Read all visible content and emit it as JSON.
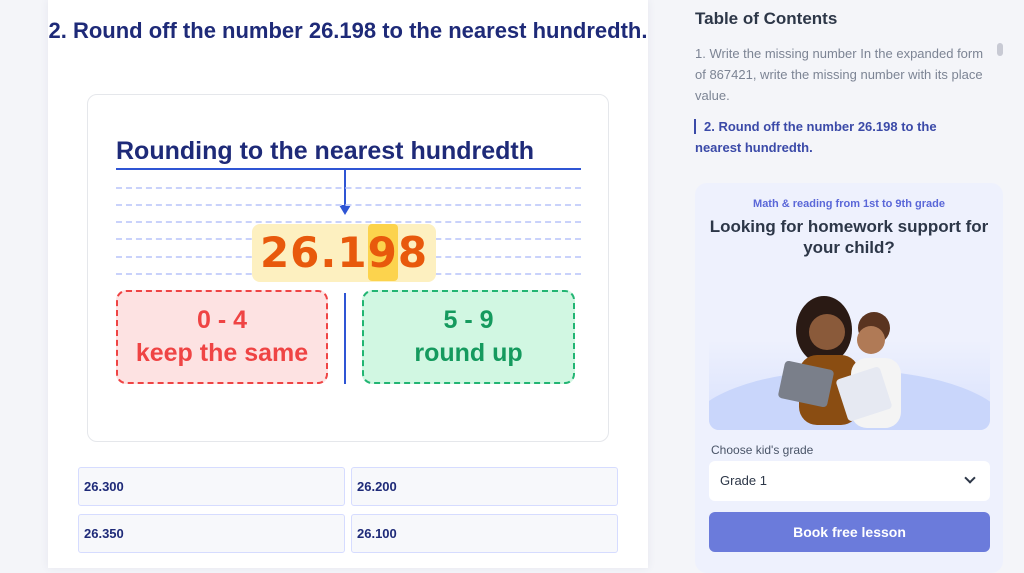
{
  "question": {
    "title": "2. Round off the number 26.198 to the nearest hundredth."
  },
  "illustration": {
    "heading": "Rounding to the nearest hundredth",
    "number_before": "26.1",
    "number_highlight": "9",
    "number_after": "8",
    "left_rule": {
      "range": "0 - 4",
      "text": "keep the same",
      "color": "#ef4444"
    },
    "right_rule": {
      "range": "5 - 9",
      "text": "round up",
      "color": "#159a5e"
    }
  },
  "answers": [
    "26.300",
    "26.200",
    "26.350",
    "26.100"
  ],
  "toc": {
    "title": "Table of Contents",
    "items": [
      {
        "label": "1. Write the missing number In the expanded form of 867421, write the missing number with its place value.",
        "active": false
      },
      {
        "label": "2. Round off the number 26.198 to the nearest hundredth.",
        "active": true
      }
    ]
  },
  "promo": {
    "subtitle": "Math & reading from 1st to 9th grade",
    "title": "Looking for homework support for your child?",
    "grade_label": "Choose kid's grade",
    "grade_value": "Grade 1",
    "button": "Book free lesson",
    "accent": "#6b7bdb"
  }
}
